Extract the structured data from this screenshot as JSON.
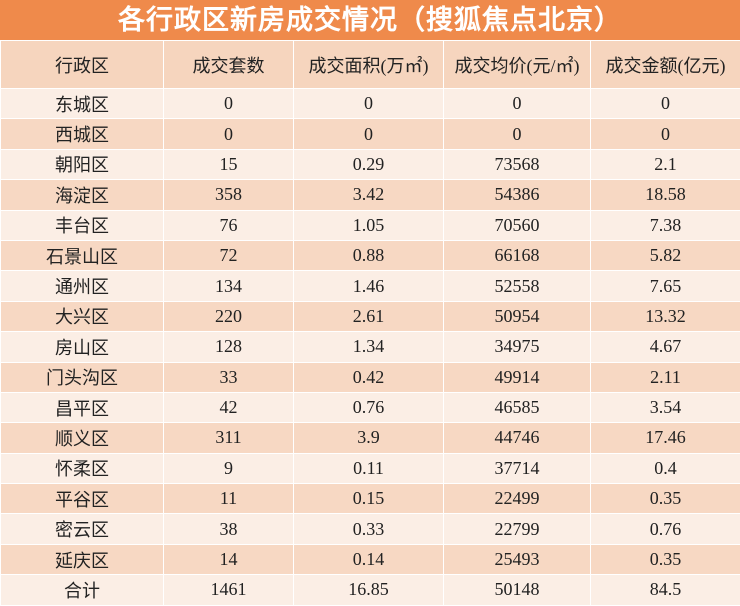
{
  "header": {
    "title": "各行政区新房成交情况（搜狐焦点北京）"
  },
  "table": {
    "columns": [
      "行政区",
      "成交套数",
      "成交面积(万㎡)",
      "成交均价(元/㎡)",
      "成交金额(亿元)"
    ],
    "rows": [
      [
        "东城区",
        "0",
        "0",
        "0",
        "0"
      ],
      [
        "西城区",
        "0",
        "0",
        "0",
        "0"
      ],
      [
        "朝阳区",
        "15",
        "0.29",
        "73568",
        "2.1"
      ],
      [
        "海淀区",
        "358",
        "3.42",
        "54386",
        "18.58"
      ],
      [
        "丰台区",
        "76",
        "1.05",
        "70560",
        "7.38"
      ],
      [
        "石景山区",
        "72",
        "0.88",
        "66168",
        "5.82"
      ],
      [
        "通州区",
        "134",
        "1.46",
        "52558",
        "7.65"
      ],
      [
        "大兴区",
        "220",
        "2.61",
        "50954",
        "13.32"
      ],
      [
        "房山区",
        "128",
        "1.34",
        "34975",
        "4.67"
      ],
      [
        "门头沟区",
        "33",
        "0.42",
        "49914",
        "2.11"
      ],
      [
        "昌平区",
        "42",
        "0.76",
        "46585",
        "3.54"
      ],
      [
        "顺义区",
        "311",
        "3.9",
        "44746",
        "17.46"
      ],
      [
        "怀柔区",
        "9",
        "0.11",
        "37714",
        "0.4"
      ],
      [
        "平谷区",
        "11",
        "0.15",
        "22499",
        "0.35"
      ],
      [
        "密云区",
        "38",
        "0.33",
        "22799",
        "0.76"
      ],
      [
        "延庆区",
        "14",
        "0.14",
        "25493",
        "0.35"
      ],
      [
        "合计",
        "1461",
        "16.85",
        "50148",
        "84.5"
      ]
    ]
  }
}
